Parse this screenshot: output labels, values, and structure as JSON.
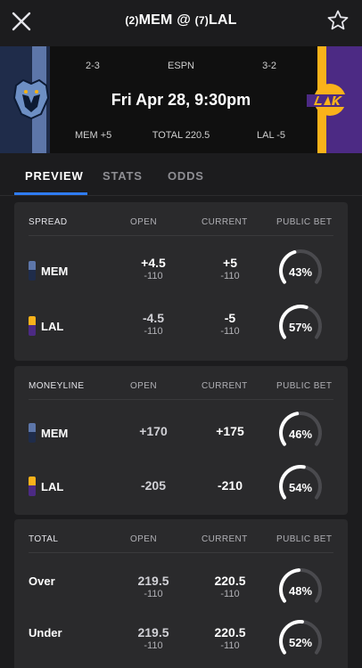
{
  "header": {
    "away_seed": "(2)",
    "away_abbr": "MEM",
    "at": "@",
    "home_seed": "(7)",
    "home_abbr": "LAL"
  },
  "icons": {
    "close": "close-icon",
    "favorite": "star-icon"
  },
  "banner": {
    "away_record": "2-3",
    "network": "ESPN",
    "home_record": "3-2",
    "datetime": "Fri Apr 28, 9:30pm",
    "away_line": "MEM +5",
    "total_line": "TOTAL 220.5",
    "home_line": "LAL -5",
    "away_color": "#5d76a9",
    "home_color": "#f9b21a"
  },
  "tabs": [
    {
      "label": "PREVIEW",
      "active": true
    },
    {
      "label": "STATS",
      "active": false
    },
    {
      "label": "ODDS",
      "active": false
    }
  ],
  "columns": {
    "open": "OPEN",
    "current": "CURRENT",
    "public": "PUBLIC BET"
  },
  "spread": {
    "title": "SPREAD",
    "rows": [
      {
        "team": "MEM",
        "open": "+4.5",
        "open_sub": "-110",
        "current": "+5",
        "current_sub": "-110",
        "public": "43%",
        "public_value": 43
      },
      {
        "team": "LAL",
        "open": "-4.5",
        "open_sub": "-110",
        "current": "-5",
        "current_sub": "-110",
        "public": "57%",
        "public_value": 57
      }
    ]
  },
  "moneyline": {
    "title": "MONEYLINE",
    "rows": [
      {
        "team": "MEM",
        "open": "+170",
        "current": "+175",
        "public": "46%",
        "public_value": 46
      },
      {
        "team": "LAL",
        "open": "-205",
        "current": "-210",
        "public": "54%",
        "public_value": 54
      }
    ]
  },
  "total": {
    "title": "TOTAL",
    "rows": [
      {
        "label": "Over",
        "open": "219.5",
        "open_sub": "-110",
        "current": "220.5",
        "current_sub": "-110",
        "public": "48%",
        "public_value": 48
      },
      {
        "label": "Under",
        "open": "219.5",
        "open_sub": "-110",
        "current": "220.5",
        "current_sub": "-110",
        "public": "52%",
        "public_value": 52
      }
    ]
  }
}
